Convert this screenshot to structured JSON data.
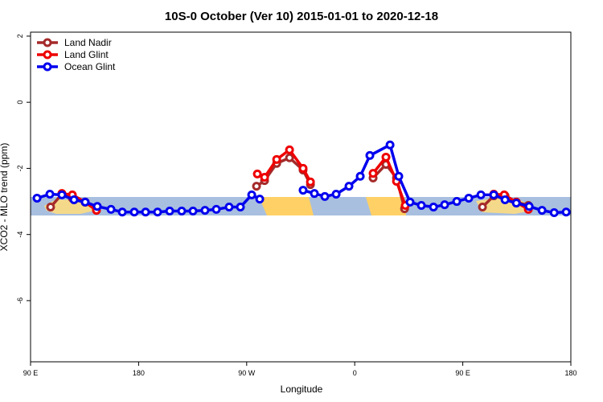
{
  "chart_data": {
    "type": "line",
    "title": "10S-0 October (Ver 10)   2015-01-01 to 2020-12-18",
    "x_label": "Longitude",
    "y_label": "XCO2 - MLO trend (ppm)",
    "xlim": [
      90,
      540
    ],
    "ylim": [
      -7.85,
      2.12
    ],
    "xticks": [
      {
        "value": 90,
        "label": "90 E"
      },
      180,
      {
        "value": 270,
        "label": "90 W"
      },
      {
        "value": 360,
        "label": "0"
      },
      {
        "value": 450,
        "label": "90 E"
      },
      {
        "value": 540,
        "label": "180"
      }
    ],
    "yticks": [
      2,
      0,
      -2,
      -4,
      -6
    ],
    "legend": "top-left",
    "series": [
      {
        "name": "Land Nadir",
        "color": "#a52a2a",
        "x": [
          106.7,
          116.1,
          124.8,
          135.5,
          144.9,
          null,
          278.2,
          284.9,
          295,
          305.7,
          317,
          323.1,
          null,
          375.3,
          386,
          394.8,
          401.5,
          null,
          466.4,
          475.8,
          485.2,
          494.6,
          504.6
        ],
        "values": [
          -3.17,
          -2.78,
          -2.9,
          -3.02,
          -3.2,
          null,
          -2.54,
          -2.37,
          -1.85,
          -1.68,
          -2.05,
          -2.49,
          null,
          -2.29,
          -1.88,
          -2.29,
          -3.22,
          null,
          -3.17,
          -2.83,
          -2.83,
          -3.02,
          -3.12
        ]
      },
      {
        "name": "Land Glint",
        "color": "#ee0000",
        "x": [
          116.1,
          124.8,
          135.5,
          144.9,
          null,
          278.9,
          284.9,
          295,
          305.7,
          317,
          323.1,
          null,
          375.3,
          386,
          394.8,
          402.1,
          null,
          475.8,
          484.5,
          494.6,
          504.6
        ],
        "values": [
          -2.76,
          -2.8,
          -3.02,
          -3.27,
          null,
          -2.17,
          -2.27,
          -1.73,
          -1.44,
          -2.0,
          -2.41,
          null,
          -2.15,
          -1.66,
          -2.39,
          -3.12,
          null,
          -2.78,
          -2.8,
          -3.02,
          -3.24
        ]
      },
      {
        "name": "Ocean Glint",
        "color": "#0000ee",
        "x": [
          95.4,
          106.1,
          116.1,
          126.2,
          135.5,
          145.6,
          157,
          166.4,
          176.4,
          185.8,
          195.8,
          205.9,
          215.9,
          225.3,
          235.3,
          244.7,
          255.4,
          264.8,
          274.2,
          280.9,
          null,
          317,
          326.4,
          335.1,
          344.5,
          355.2,
          364.6,
          372.6,
          389.4,
          396.7,
          406.1,
          415.5,
          425.6,
          434.9,
          445,
          455,
          465.1,
          475.8,
          485.2,
          494.6,
          505.3,
          516,
          526.1,
          536.1
        ],
        "values": [
          -2.9,
          -2.78,
          -2.8,
          -2.95,
          -3.02,
          -3.15,
          -3.24,
          -3.32,
          -3.32,
          -3.32,
          -3.32,
          -3.29,
          -3.29,
          -3.29,
          -3.27,
          -3.24,
          -3.17,
          -3.17,
          -2.8,
          -2.93,
          null,
          -2.66,
          -2.76,
          -2.85,
          -2.78,
          -2.54,
          -2.24,
          -1.61,
          -1.29,
          -2.24,
          -3.02,
          -3.12,
          -3.17,
          -3.1,
          -3.0,
          -2.9,
          -2.8,
          -2.8,
          -2.95,
          -3.05,
          -3.15,
          -3.27,
          -3.34,
          -3.32
        ]
      }
    ]
  }
}
